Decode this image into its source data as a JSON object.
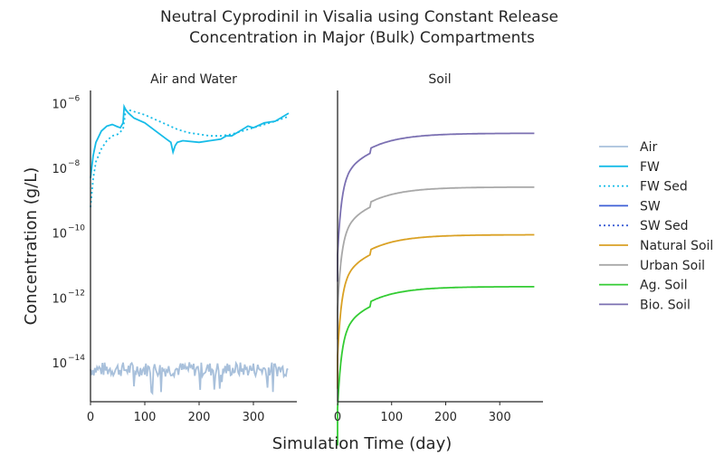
{
  "figure": {
    "title_line1": "Neutral Cyprodinil in Visalia using Constant Release",
    "title_line2": "Concentration in Major (Bulk) Compartments",
    "xlabel": "Simulation Time (day)",
    "ylabel": "Concentration (g/L)"
  },
  "legend": {
    "entries": [
      {
        "label": "Air",
        "color": "#a8c0db",
        "style": "solid"
      },
      {
        "label": "FW",
        "color": "#17bce8",
        "style": "solid"
      },
      {
        "label": "FW Sed",
        "color": "#17bce8",
        "style": "dotted"
      },
      {
        "label": "SW",
        "color": "#3d5fd6",
        "style": "solid"
      },
      {
        "label": "SW Sed",
        "color": "#3d5fd6",
        "style": "dotted"
      },
      {
        "label": "Natural Soil",
        "color": "#daa124",
        "style": "solid"
      },
      {
        "label": "Urban Soil",
        "color": "#a8a8a8",
        "style": "solid"
      },
      {
        "label": "Ag. Soil",
        "color": "#33cc33",
        "style": "solid"
      },
      {
        "label": "Bio. Soil",
        "color": "#7b70b2",
        "style": "solid"
      }
    ]
  },
  "chart_data": [
    {
      "type": "line",
      "title": "Air and Water",
      "xlim": [
        0,
        380
      ],
      "ylim_log10": [
        -15.2,
        -5.6
      ],
      "yscale": "log",
      "xticks": [
        0,
        100,
        200,
        300
      ],
      "yticks": [
        {
          "exp": -6,
          "base": "10",
          "sup": "−6"
        },
        {
          "exp": -8,
          "base": "10",
          "sup": "−8"
        },
        {
          "exp": -10,
          "base": "10",
          "sup": "−10"
        },
        {
          "exp": -12,
          "base": "10",
          "sup": "−12"
        },
        {
          "exp": -14,
          "base": "10",
          "sup": "−14"
        }
      ],
      "grid": false,
      "series": [
        {
          "name": "Air",
          "color": "#a8c0db",
          "style": "solid",
          "noisy": true,
          "x": [
            0,
            365
          ],
          "log10_y": [
            -14.2,
            -14.2
          ]
        },
        {
          "name": "FW",
          "color": "#17bce8",
          "style": "solid",
          "x": [
            0,
            5,
            10,
            20,
            30,
            40,
            50,
            55,
            60,
            62,
            65,
            70,
            80,
            100,
            120,
            140,
            148,
            152,
            156,
            160,
            170,
            200,
            220,
            240,
            250,
            260,
            270,
            280,
            290,
            300,
            320,
            340,
            350,
            365
          ],
          "log10_y": [
            -8.3,
            -7.6,
            -7.2,
            -6.85,
            -6.7,
            -6.65,
            -6.72,
            -6.75,
            -6.6,
            -6.1,
            -6.2,
            -6.3,
            -6.45,
            -6.6,
            -6.85,
            -7.1,
            -7.2,
            -7.5,
            -7.3,
            -7.2,
            -7.15,
            -7.2,
            -7.15,
            -7.1,
            -7.0,
            -7.0,
            -6.9,
            -6.8,
            -6.7,
            -6.75,
            -6.6,
            -6.55,
            -6.45,
            -6.3
          ]
        },
        {
          "name": "FW Sed",
          "color": "#17bce8",
          "style": "dotted",
          "x": [
            0,
            5,
            10,
            20,
            30,
            40,
            50,
            60,
            65,
            70,
            80,
            90,
            100,
            120,
            140,
            160,
            180,
            200,
            220,
            240,
            260,
            280,
            300,
            320,
            340,
            365
          ],
          "log10_y": [
            -9.2,
            -8.3,
            -7.8,
            -7.4,
            -7.15,
            -7.0,
            -6.95,
            -6.8,
            -6.2,
            -6.2,
            -6.25,
            -6.3,
            -6.35,
            -6.5,
            -6.65,
            -6.8,
            -6.9,
            -6.95,
            -7.0,
            -7.0,
            -6.95,
            -6.85,
            -6.75,
            -6.65,
            -6.55,
            -6.4
          ]
        }
      ]
    },
    {
      "type": "line",
      "title": "Soil",
      "xlim": [
        0,
        380
      ],
      "ylim_log10": [
        -15.2,
        -5.6
      ],
      "yscale": "log",
      "xticks": [
        0,
        100,
        200,
        300
      ],
      "grid": false,
      "series": [
        {
          "name": "Bio. Soil",
          "color": "#7b70b2",
          "style": "solid",
          "jump": [
            2.2,
            7.08
          ],
          "plateau": -6.82,
          "rise": 100
        },
        {
          "name": "Urban Soil",
          "color": "#a8a8a8",
          "style": "solid",
          "jump": [
            2.2,
            7.2
          ],
          "plateau": -8.48,
          "rise": 100
        },
        {
          "name": "Natural Soil",
          "color": "#daa124",
          "style": "solid",
          "jump": [
            2.2,
            7.25
          ],
          "plateau": -9.95,
          "rise": 100
        },
        {
          "name": "Ag. Soil",
          "color": "#33cc33",
          "style": "solid",
          "jump": [
            2.2,
            7.4
          ],
          "plateau": -11.55,
          "rise": 100
        }
      ]
    }
  ]
}
